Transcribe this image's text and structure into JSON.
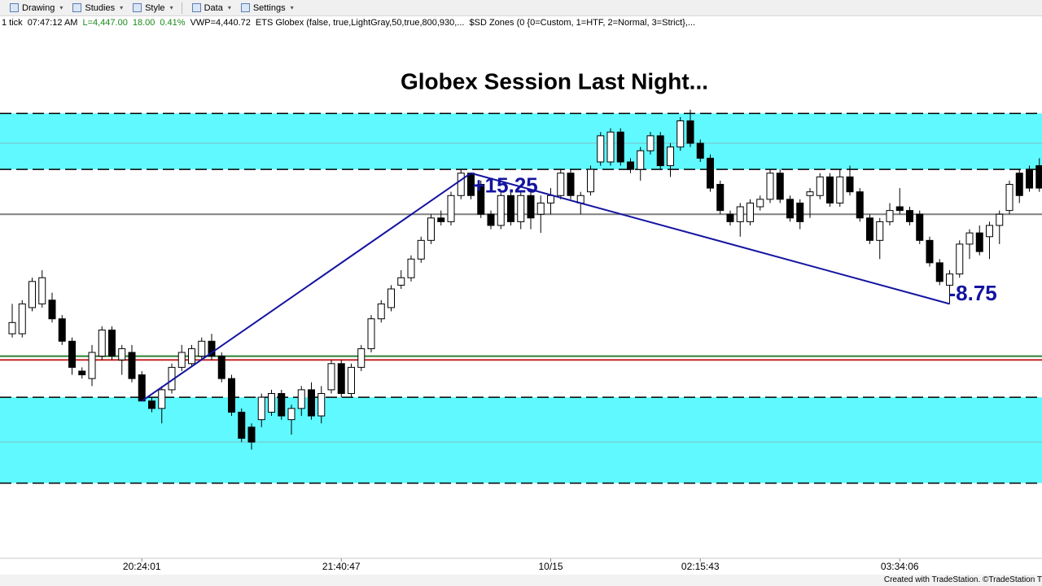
{
  "toolbar": [
    "Drawing",
    "Studies",
    "Style",
    "Data",
    "Settings"
  ],
  "status": [
    {
      "text": "1 tick",
      "color": "#000000"
    },
    {
      "text": "07:47:12 AM",
      "color": "#000000"
    },
    {
      "text": "L=4,447.00",
      "color": "#1a8a1a"
    },
    {
      "text": "18.00",
      "color": "#1a8a1a"
    },
    {
      "text": "0.41%",
      "color": "#1a8a1a"
    },
    {
      "text": "VWP=4,440.72",
      "color": "#000000"
    },
    {
      "text": "ETS Globex (false,  true,LightGray,50,true,800,930,...",
      "color": "#000000"
    },
    {
      "text": "$SD Zones (0  {0=Custom, 1=HTF, 2=Normal, 3=Strict},...",
      "color": "#000000"
    }
  ],
  "chart_data": {
    "type": "candlestick",
    "title": "Globex Session Last Night...",
    "categories": [
      null,
      null,
      null,
      null,
      null,
      null,
      null,
      null,
      null,
      null,
      null,
      null,
      null,
      "20:24:01",
      null,
      null,
      null,
      null,
      null,
      null,
      null,
      null,
      null,
      null,
      null,
      null,
      null,
      null,
      null,
      null,
      null,
      null,
      null,
      "21:40:47",
      null,
      null,
      null,
      null,
      null,
      null,
      null,
      null,
      null,
      null,
      null,
      null,
      null,
      null,
      null,
      null,
      null,
      null,
      null,
      null,
      "10/15",
      null,
      null,
      null,
      null,
      null,
      null,
      null,
      null,
      null,
      null,
      null,
      null,
      null,
      null,
      "02:15:43",
      null,
      null,
      null,
      null,
      null,
      null,
      null,
      null,
      null,
      null,
      null,
      null,
      null,
      null,
      null,
      null,
      null,
      null,
      null,
      "03:34:06",
      null,
      null,
      null,
      null,
      null,
      null,
      null,
      null,
      null,
      null,
      null,
      null,
      null,
      null
    ],
    "open": [
      4437.25,
      4437.25,
      4439.0,
      4439.25,
      4439.5,
      4438.25,
      4436.75,
      4434.75,
      4434.25,
      4435.75,
      4437.5,
      4435.5,
      4436.0,
      4434.5,
      4432.75,
      4432.25,
      4433.5,
      4435.0,
      4435.25,
      4435.75,
      4436.75,
      4435.75,
      4434.25,
      4432.0,
      4431.0,
      4431.5,
      4432.0,
      4433.25,
      4431.5,
      4432.25,
      4433.5,
      4431.75,
      4433.5,
      4435.25,
      4433.25,
      4435.0,
      4436.25,
      4438.25,
      4439.0,
      4440.5,
      4441.0,
      4442.25,
      4443.5,
      4445.0,
      4444.75,
      4446.5,
      4448.0,
      4447.25,
      4445.25,
      4444.5,
      4446.5,
      4444.75,
      4446.5,
      4445.25,
      4446.0,
      4446.5,
      4448.0,
      4446.0,
      4446.75,
      4448.75,
      4448.75,
      4450.75,
      4448.75,
      4448.25,
      4449.5,
      4450.5,
      4448.5,
      4449.75,
      4451.5,
      4450.0,
      4449.0,
      4447.25,
      4445.25,
      4444.75,
      4444.75,
      4445.75,
      4446.25,
      4448.0,
      4446.25,
      4446.0,
      4446.5,
      4446.5,
      4447.75,
      4446.0,
      4447.75,
      4446.75,
      4445.0,
      4443.5,
      4444.75,
      4445.75,
      4445.5,
      4445.25,
      4443.5,
      4442.0,
      4440.5,
      4441.25,
      4443.25,
      4444.0,
      4443.75,
      4444.5,
      4445.5,
      4448.0,
      4448.25,
      4448.5
    ],
    "high": [
      4439.25,
      4439.5,
      4441.0,
      4441.5,
      4440.0,
      4438.5,
      4437.0,
      4435.0,
      4436.5,
      4437.75,
      4437.75,
      4436.5,
      4436.5,
      4434.75,
      4433.0,
      4433.75,
      4435.25,
      4436.5,
      4436.5,
      4437.0,
      4437.25,
      4436.0,
      4434.5,
      4432.25,
      4431.25,
      4433.25,
      4433.5,
      4433.5,
      4432.5,
      4433.75,
      4434.0,
      4433.75,
      4435.5,
      4435.5,
      4435.25,
      4436.5,
      4438.5,
      4439.5,
      4440.5,
      4441.5,
      4442.5,
      4443.75,
      4445.25,
      4445.5,
      4446.75,
      4448.25,
      4448.0,
      4447.5,
      4445.5,
      4446.75,
      4446.75,
      4446.75,
      4446.75,
      4446.5,
      4447.0,
      4448.25,
      4448.25,
      4446.75,
      4448.5,
      4450.75,
      4451.0,
      4451.0,
      4449.0,
      4449.75,
      4450.75,
      4450.75,
      4450.0,
      4451.75,
      4452.25,
      4450.25,
      4449.25,
      4447.5,
      4445.5,
      4446.0,
      4446.25,
      4446.5,
      4448.25,
      4448.25,
      4446.5,
      4446.25,
      4447.0,
      4448.0,
      4448.0,
      4448.25,
      4448.5,
      4447.0,
      4445.25,
      4445.0,
      4446.0,
      4447.0,
      4445.75,
      4445.5,
      4443.75,
      4442.25,
      4441.5,
      4443.5,
      4444.25,
      4444.5,
      4444.75,
      4445.5,
      4447.5,
      4448.25,
      4448.5,
      4449.0
    ],
    "low": [
      4437.0,
      4437.0,
      4438.75,
      4439.0,
      4438.0,
      4436.5,
      4434.5,
      4434.25,
      4433.75,
      4435.5,
      4435.5,
      4434.5,
      4434.0,
      4432.75,
      4432.0,
      4431.25,
      4433.25,
      4434.75,
      4435.0,
      4435.5,
      4435.5,
      4434.0,
      4431.75,
      4430.0,
      4429.5,
      4431.0,
      4431.75,
      4431.5,
      4430.5,
      4431.75,
      4431.5,
      4431.25,
      4433.25,
      4433.0,
      4433.0,
      4434.75,
      4436.0,
      4438.0,
      4438.75,
      4440.25,
      4440.75,
      4442.0,
      4443.25,
      4444.5,
      4444.5,
      4446.25,
      4446.25,
      4445.0,
      4444.25,
      4444.25,
      4444.5,
      4444.25,
      4444.25,
      4444.0,
      4445.25,
      4446.25,
      4446.25,
      4445.25,
      4446.5,
      4448.5,
      4448.5,
      4448.5,
      4448.0,
      4447.5,
      4449.25,
      4448.25,
      4447.75,
      4449.5,
      4449.75,
      4448.75,
      4446.75,
      4445.25,
      4444.5,
      4443.75,
      4444.5,
      4445.5,
      4446.0,
      4446.0,
      4444.75,
      4444.25,
      4445.0,
      4446.25,
      4445.75,
      4445.75,
      4446.5,
      4444.75,
      4443.25,
      4442.25,
      4444.5,
      4445.25,
      4444.5,
      4443.25,
      4441.75,
      4440.5,
      4439.25,
      4441.0,
      4442.25,
      4442.5,
      4442.25,
      4443.25,
      4445.25,
      4446.0,
      4446.75,
      4446.75
    ],
    "close": [
      4438.0,
      4439.25,
      4440.75,
      4441.0,
      4438.25,
      4436.75,
      4435.0,
      4434.5,
      4436.0,
      4437.5,
      4435.75,
      4436.25,
      4434.25,
      4432.75,
      4432.25,
      4433.5,
      4435.0,
      4436.0,
      4436.25,
      4436.75,
      4435.75,
      4434.25,
      4432.0,
      4430.25,
      4430.0,
      4433.0,
      4433.25,
      4431.75,
      4432.25,
      4433.5,
      4431.75,
      4433.25,
      4435.25,
      4433.25,
      4435.0,
      4436.25,
      4438.25,
      4439.25,
      4440.25,
      4441.0,
      4442.25,
      4443.5,
      4445.0,
      4444.75,
      4446.5,
      4448.0,
      4446.5,
      4445.25,
      4444.5,
      4446.5,
      4444.75,
      4446.5,
      4445.0,
      4446.0,
      4446.5,
      4448.0,
      4446.5,
      4446.5,
      4448.25,
      4450.5,
      4450.75,
      4448.75,
      4448.25,
      4449.5,
      4450.5,
      4448.5,
      4449.75,
      4451.5,
      4450.0,
      4449.0,
      4447.0,
      4445.5,
      4444.75,
      4445.75,
      4446.0,
      4446.25,
      4448.0,
      4446.25,
      4445.0,
      4444.75,
      4446.75,
      4447.75,
      4446.0,
      4447.75,
      4446.75,
      4445.0,
      4443.5,
      4444.75,
      4445.5,
      4445.5,
      4444.75,
      4443.5,
      4442.0,
      4440.75,
      4441.25,
      4443.25,
      4444.0,
      4442.75,
      4444.5,
      4445.25,
      4447.25,
      4446.5,
      4447.0,
      4447.0
    ],
    "up_color": "#ffffff",
    "down_color": "#000000",
    "ylim": [
      4422,
      4458.5
    ],
    "zones": [
      {
        "top": 4452.0,
        "bottom": 4448.25,
        "mid": 4450.0,
        "color": "#5ff9ff"
      },
      {
        "top": 4433.0,
        "bottom": 4427.25,
        "mid": 4430.0,
        "color": "#5ff9ff"
      }
    ],
    "levels": [
      {
        "value": 4445.25,
        "color": "#808080"
      },
      {
        "value": 4435.75,
        "color": "#2e7d32"
      },
      {
        "value": 4435.5,
        "color": "#c62828"
      }
    ],
    "trend_color": "#1414a0",
    "annotations": [
      "+15.25",
      "-8.75"
    ]
  },
  "footer": "Created with TradeStation. ©TradeStation T"
}
